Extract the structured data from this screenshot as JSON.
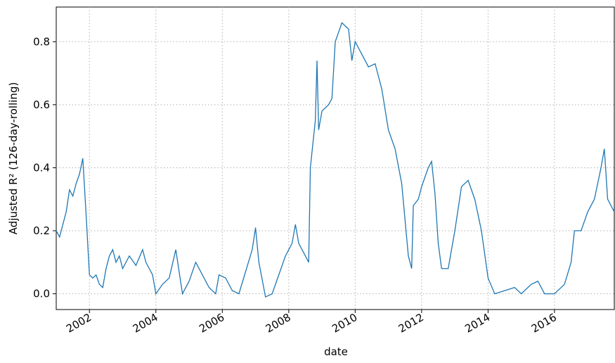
{
  "chart_data": {
    "type": "line",
    "xlabel": "date",
    "ylabel": "Adjusted R² (126-day-rolling)",
    "color": "#1f77b4",
    "grid": true,
    "xlim": [
      2001.0,
      2017.8
    ],
    "ylim": [
      -0.05,
      0.91
    ],
    "xticks": [
      2002,
      2004,
      2006,
      2008,
      2010,
      2012,
      2014,
      2016
    ],
    "yticks": [
      {
        "value": 0,
        "label": "0.0"
      },
      0.2,
      0.4,
      0.6,
      0.8
    ],
    "x": [
      2001.0,
      2001.1,
      2001.2,
      2001.3,
      2001.4,
      2001.5,
      2001.6,
      2001.7,
      2001.8,
      2001.9,
      2002.0,
      2002.1,
      2002.2,
      2002.3,
      2002.4,
      2002.5,
      2002.6,
      2002.7,
      2002.8,
      2002.9,
      2003.0,
      2003.2,
      2003.4,
      2003.6,
      2003.7,
      2003.9,
      2004.0,
      2004.2,
      2004.4,
      2004.6,
      2004.8,
      2005.0,
      2005.2,
      2005.4,
      2005.6,
      2005.8,
      2005.9,
      2006.1,
      2006.3,
      2006.5,
      2006.7,
      2006.9,
      2007.0,
      2007.1,
      2007.3,
      2007.5,
      2007.7,
      2007.9,
      2008.1,
      2008.2,
      2008.3,
      2008.5,
      2008.6,
      2008.65,
      2008.8,
      2008.85,
      2008.9,
      2009.0,
      2009.2,
      2009.3,
      2009.4,
      2009.6,
      2009.8,
      2009.9,
      2010.0,
      2010.2,
      2010.4,
      2010.6,
      2010.8,
      2011.0,
      2011.2,
      2011.4,
      2011.6,
      2011.7,
      2011.75,
      2011.9,
      2012.0,
      2012.2,
      2012.3,
      2012.4,
      2012.5,
      2012.6,
      2012.8,
      2013.0,
      2013.2,
      2013.4,
      2013.6,
      2013.8,
      2014.0,
      2014.2,
      2014.5,
      2014.8,
      2015.0,
      2015.3,
      2015.5,
      2015.7,
      2016.0,
      2016.3,
      2016.5,
      2016.6,
      2016.8,
      2017.0,
      2017.2,
      2017.4,
      2017.5,
      2017.6,
      2017.7,
      2017.8
    ],
    "values": [
      0.2,
      0.18,
      0.22,
      0.26,
      0.33,
      0.31,
      0.35,
      0.38,
      0.43,
      0.25,
      0.06,
      0.05,
      0.06,
      0.03,
      0.02,
      0.08,
      0.12,
      0.14,
      0.1,
      0.12,
      0.08,
      0.12,
      0.09,
      0.14,
      0.1,
      0.06,
      0.0,
      0.03,
      0.05,
      0.14,
      0.0,
      0.04,
      0.1,
      0.06,
      0.02,
      0.0,
      0.06,
      0.05,
      0.01,
      0.0,
      0.07,
      0.14,
      0.21,
      0.1,
      -0.01,
      0.0,
      0.06,
      0.12,
      0.16,
      0.22,
      0.16,
      0.12,
      0.1,
      0.4,
      0.55,
      0.74,
      0.52,
      0.58,
      0.6,
      0.62,
      0.8,
      0.86,
      0.84,
      0.74,
      0.8,
      0.76,
      0.72,
      0.73,
      0.65,
      0.52,
      0.46,
      0.35,
      0.12,
      0.08,
      0.28,
      0.3,
      0.34,
      0.4,
      0.42,
      0.32,
      0.16,
      0.08,
      0.08,
      0.2,
      0.34,
      0.36,
      0.3,
      0.2,
      0.05,
      0.0,
      0.01,
      0.02,
      0.0,
      0.03,
      0.04,
      0.0,
      0.0,
      0.03,
      0.1,
      0.2,
      0.2,
      0.26,
      0.3,
      0.4,
      0.46,
      0.3,
      0.28,
      0.26
    ]
  }
}
